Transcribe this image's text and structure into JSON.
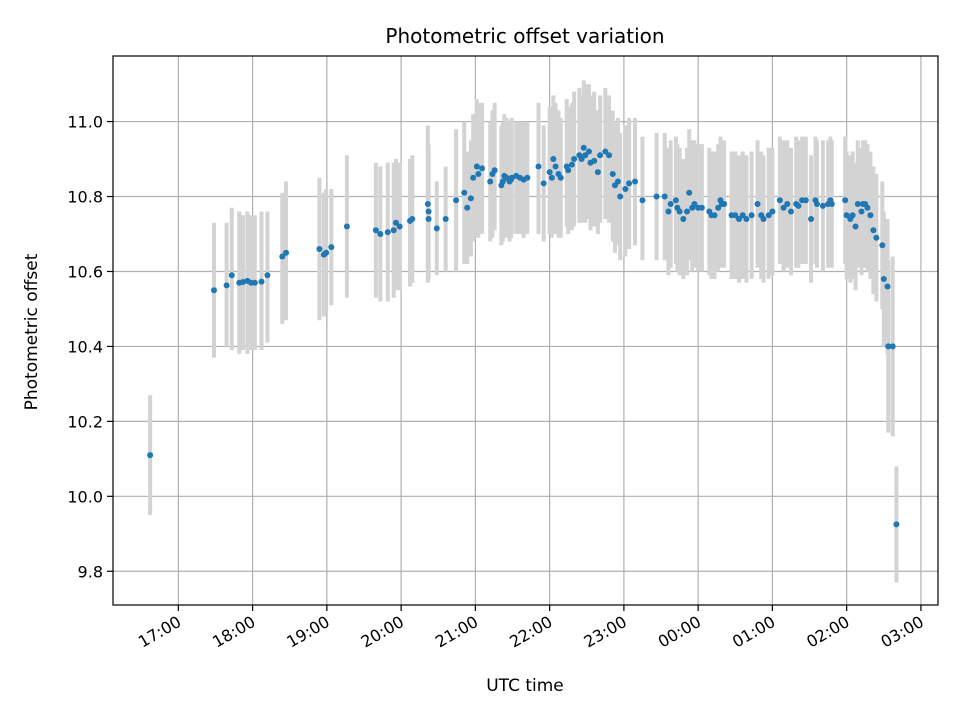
{
  "chart_data": {
    "type": "scatter",
    "title": "Photometric offset variation",
    "xlabel": "UTC time",
    "ylabel": "Photometric offset",
    "x_tick_labels": [
      "17:00",
      "18:00",
      "19:00",
      "20:00",
      "21:00",
      "22:00",
      "23:00",
      "00:00",
      "01:00",
      "02:00",
      "03:00"
    ],
    "x_tick_hours": [
      17,
      18,
      19,
      20,
      21,
      22,
      23,
      24,
      25,
      26,
      27
    ],
    "y_ticks": [
      9.8,
      10.0,
      10.2,
      10.4,
      10.6,
      10.8,
      11.0
    ],
    "y_tick_labels": [
      "9.8",
      "10.0",
      "10.2",
      "10.4",
      "10.6",
      "10.8",
      "11.0"
    ],
    "xlim_hours": [
      16.12,
      27.23
    ],
    "ylim": [
      9.71,
      11.175
    ],
    "grid": true,
    "colors": {
      "points": "#1f77b4",
      "errorbars": "#d3d3d3",
      "grid": "#b0b0b0"
    },
    "series": [
      {
        "hours": [
          16.62,
          17.48,
          17.65,
          17.72,
          17.82,
          17.87,
          17.93,
          17.98,
          18.03,
          18.12,
          18.2,
          18.4,
          18.45,
          18.9,
          18.96,
          18.99,
          19.06,
          19.27,
          19.66,
          19.72,
          19.82,
          19.9,
          19.93,
          19.98,
          20.12,
          20.15,
          20.36,
          20.37,
          20.37,
          20.48,
          20.6,
          20.74,
          20.85,
          20.89,
          20.94,
          20.97,
          21.02,
          21.04,
          21.09,
          21.2,
          21.23,
          21.26,
          21.35,
          21.37,
          21.39,
          21.42,
          21.46,
          21.48,
          21.49,
          21.55,
          21.6,
          21.65,
          21.7,
          21.85,
          21.92,
          22.0,
          22.03,
          22.05,
          22.08,
          22.12,
          22.15,
          22.23,
          22.25,
          22.3,
          22.33,
          22.4,
          22.43,
          22.46,
          22.48,
          22.53,
          22.55,
          22.6,
          22.65,
          22.68,
          22.75,
          22.8,
          22.85,
          22.88,
          22.92,
          22.95,
          23.02,
          23.07,
          23.15,
          23.25,
          23.44,
          23.55,
          23.6,
          23.63,
          23.7,
          23.72,
          23.75,
          23.8,
          23.85,
          23.88,
          23.92,
          23.95,
          24.0,
          24.05,
          24.15,
          24.18,
          24.22,
          24.27,
          24.3,
          24.32,
          24.35,
          24.45,
          24.5,
          24.55,
          24.6,
          24.65,
          24.72,
          24.8,
          24.85,
          24.88,
          24.95,
          25.0,
          25.1,
          25.15,
          25.2,
          25.25,
          25.32,
          25.35,
          25.4,
          25.45,
          25.52,
          25.58,
          25.6,
          25.68,
          25.75,
          25.78,
          25.8,
          25.98,
          26.0,
          26.05,
          26.08,
          26.12,
          26.15,
          26.2,
          26.22,
          26.25,
          26.28,
          26.32,
          26.36,
          26.4,
          26.48,
          26.5,
          26.55,
          26.56,
          26.62,
          26.67
        ],
        "values": [
          10.11,
          10.55,
          10.563,
          10.59,
          10.57,
          10.572,
          10.575,
          10.57,
          10.57,
          10.573,
          10.59,
          10.64,
          10.65,
          10.66,
          10.645,
          10.65,
          10.665,
          10.72,
          10.71,
          10.7,
          10.705,
          10.71,
          10.73,
          10.72,
          10.735,
          10.74,
          10.78,
          10.76,
          10.74,
          10.715,
          10.74,
          10.79,
          10.81,
          10.77,
          10.795,
          10.85,
          10.88,
          10.86,
          10.875,
          10.84,
          10.86,
          10.87,
          10.83,
          10.84,
          10.855,
          10.85,
          10.84,
          10.845,
          10.85,
          10.855,
          10.85,
          10.845,
          10.85,
          10.88,
          10.835,
          10.865,
          10.85,
          10.9,
          10.88,
          10.86,
          10.85,
          10.88,
          10.87,
          10.885,
          10.9,
          10.91,
          10.9,
          10.93,
          10.91,
          10.92,
          10.89,
          10.895,
          10.865,
          10.91,
          10.92,
          10.91,
          10.86,
          10.83,
          10.84,
          10.8,
          10.82,
          10.835,
          10.84,
          10.79,
          10.8,
          10.8,
          10.76,
          10.78,
          10.79,
          10.77,
          10.76,
          10.74,
          10.76,
          10.81,
          10.77,
          10.78,
          10.77,
          10.77,
          10.76,
          10.75,
          10.75,
          10.77,
          10.79,
          10.78,
          10.78,
          10.75,
          10.75,
          10.74,
          10.75,
          10.74,
          10.75,
          10.78,
          10.75,
          10.74,
          10.75,
          10.76,
          10.79,
          10.77,
          10.78,
          10.76,
          10.78,
          10.775,
          10.79,
          10.79,
          10.74,
          10.79,
          10.78,
          10.775,
          10.78,
          10.79,
          10.78,
          10.79,
          10.75,
          10.74,
          10.75,
          10.72,
          10.78,
          10.76,
          10.78,
          10.78,
          10.77,
          10.75,
          10.71,
          10.69,
          10.67,
          10.58,
          10.56,
          10.4,
          10.4,
          9.925
        ],
        "errors_low": [
          9.95,
          10.37,
          10.4,
          10.39,
          10.38,
          10.39,
          10.38,
          10.39,
          10.39,
          10.39,
          10.41,
          10.46,
          10.47,
          10.47,
          10.48,
          10.49,
          10.51,
          10.53,
          10.53,
          10.52,
          10.52,
          10.53,
          10.55,
          10.55,
          10.56,
          10.57,
          10.57,
          10.58,
          10.58,
          10.59,
          10.6,
          10.6,
          10.62,
          10.62,
          10.64,
          10.68,
          10.69,
          10.69,
          10.7,
          10.68,
          10.69,
          10.71,
          10.67,
          10.68,
          10.7,
          10.69,
          10.68,
          10.69,
          10.7,
          10.7,
          10.7,
          10.69,
          10.7,
          10.7,
          10.68,
          10.7,
          10.69,
          10.72,
          10.7,
          10.69,
          10.69,
          10.72,
          10.7,
          10.71,
          10.72,
          10.73,
          10.73,
          10.75,
          10.73,
          10.74,
          10.71,
          10.72,
          10.7,
          10.73,
          10.74,
          10.73,
          10.68,
          10.65,
          10.67,
          10.63,
          10.64,
          10.66,
          10.67,
          10.63,
          10.63,
          10.63,
          10.59,
          10.61,
          10.62,
          10.6,
          10.59,
          10.58,
          10.59,
          10.63,
          10.6,
          10.61,
          10.6,
          10.6,
          10.59,
          10.58,
          10.58,
          10.6,
          10.62,
          10.61,
          10.61,
          10.58,
          10.58,
          10.57,
          10.58,
          10.57,
          10.58,
          10.61,
          10.58,
          10.57,
          10.58,
          10.59,
          10.62,
          10.6,
          10.61,
          10.59,
          10.61,
          10.61,
          10.62,
          10.62,
          10.57,
          10.62,
          10.61,
          10.6,
          10.61,
          10.62,
          10.61,
          10.62,
          10.58,
          10.57,
          10.58,
          10.55,
          10.61,
          10.59,
          10.61,
          10.61,
          10.6,
          10.58,
          10.54,
          10.52,
          10.5,
          10.4,
          10.38,
          10.17,
          10.16,
          9.77
        ],
        "errors_high": [
          10.27,
          10.73,
          10.73,
          10.77,
          10.76,
          10.75,
          10.76,
          10.75,
          10.75,
          10.76,
          10.76,
          10.81,
          10.84,
          10.85,
          10.81,
          10.82,
          10.82,
          10.91,
          10.89,
          10.88,
          10.89,
          10.89,
          10.9,
          10.89,
          10.9,
          10.91,
          10.99,
          10.94,
          10.92,
          10.84,
          10.88,
          10.98,
          11.0,
          10.92,
          10.95,
          11.02,
          11.06,
          11.05,
          11.05,
          11.0,
          11.03,
          11.05,
          10.99,
          11.0,
          11.02,
          11.01,
          11.0,
          11.0,
          11.01,
          11.0,
          11.0,
          11.0,
          11.0,
          11.05,
          10.99,
          11.04,
          11.01,
          11.07,
          11.05,
          11.03,
          11.01,
          11.06,
          11.04,
          11.05,
          11.08,
          11.09,
          11.07,
          11.11,
          11.1,
          11.1,
          11.07,
          11.08,
          11.03,
          11.07,
          11.09,
          11.07,
          11.03,
          11.0,
          11.01,
          10.97,
          10.99,
          11.01,
          11.01,
          10.96,
          10.97,
          10.97,
          10.93,
          10.95,
          10.96,
          10.94,
          10.93,
          10.9,
          10.93,
          10.98,
          10.95,
          10.95,
          10.94,
          10.94,
          10.93,
          10.92,
          10.92,
          10.94,
          10.96,
          10.95,
          10.95,
          10.92,
          10.92,
          10.91,
          10.92,
          10.91,
          10.92,
          10.95,
          10.92,
          10.91,
          10.93,
          10.93,
          10.96,
          10.95,
          10.95,
          10.93,
          10.96,
          10.95,
          10.96,
          10.96,
          10.91,
          10.96,
          10.95,
          10.95,
          10.95,
          10.96,
          10.95,
          10.96,
          10.92,
          10.91,
          10.92,
          10.89,
          10.95,
          10.93,
          10.95,
          10.95,
          10.94,
          10.92,
          10.88,
          10.86,
          10.84,
          10.76,
          10.74,
          10.63,
          10.64,
          10.08
        ]
      }
    ]
  }
}
